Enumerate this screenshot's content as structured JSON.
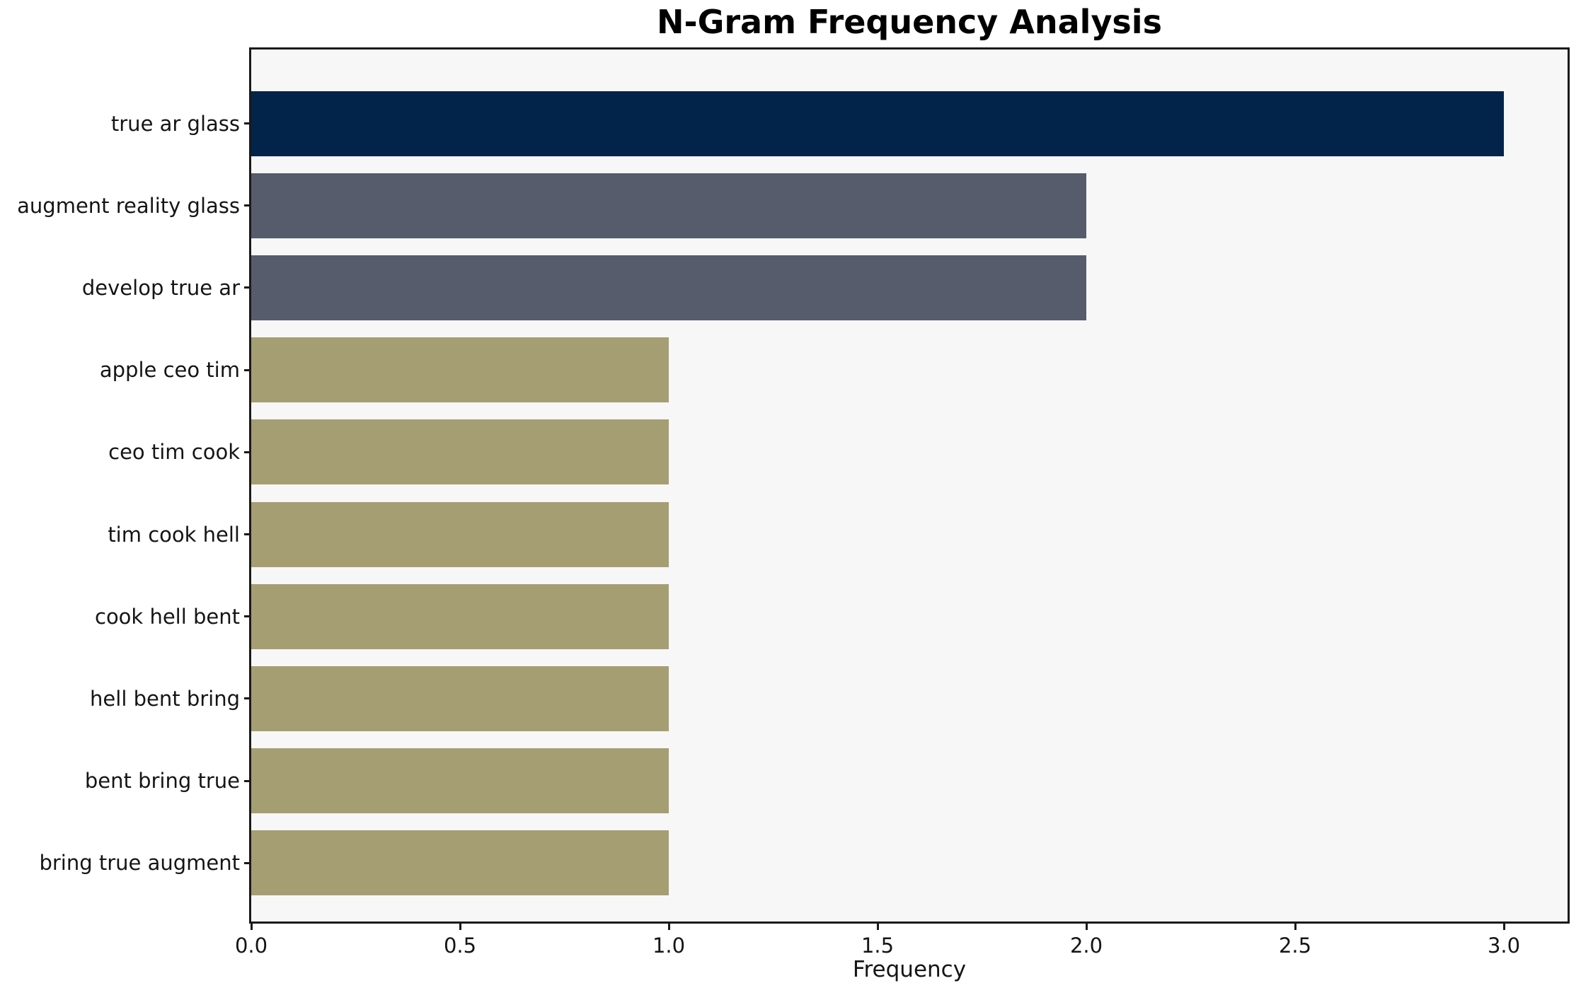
{
  "chart_data": {
    "type": "bar",
    "orientation": "horizontal",
    "title": "N-Gram Frequency Analysis",
    "xlabel": "Frequency",
    "ylabel": "",
    "categories": [
      "true ar glass",
      "augment reality glass",
      "develop true ar",
      "apple ceo tim",
      "ceo tim cook",
      "tim cook hell",
      "cook hell bent",
      "hell bent bring",
      "bent bring true",
      "bring true augment"
    ],
    "values": [
      3,
      2,
      2,
      1,
      1,
      1,
      1,
      1,
      1,
      1
    ],
    "bar_colors": [
      "#02234a",
      "#565c6b",
      "#565c6b",
      "#a69e73",
      "#a69e73",
      "#a69e73",
      "#a69e73",
      "#a69e73",
      "#a69e73",
      "#a69e73"
    ],
    "xtick_labels": [
      "0.0",
      "0.5",
      "1.0",
      "1.5",
      "2.0",
      "2.5",
      "3.0"
    ],
    "xtick_values": [
      0,
      0.5,
      1,
      1.5,
      2,
      2.5,
      3
    ],
    "xlim": [
      0,
      3.1525
    ],
    "grid": false,
    "legend": null,
    "colors": {
      "plot_background": "#f7f7f8",
      "figure_background": "#ffffff",
      "spine": "#1a1a1a",
      "text": "#151515"
    }
  }
}
